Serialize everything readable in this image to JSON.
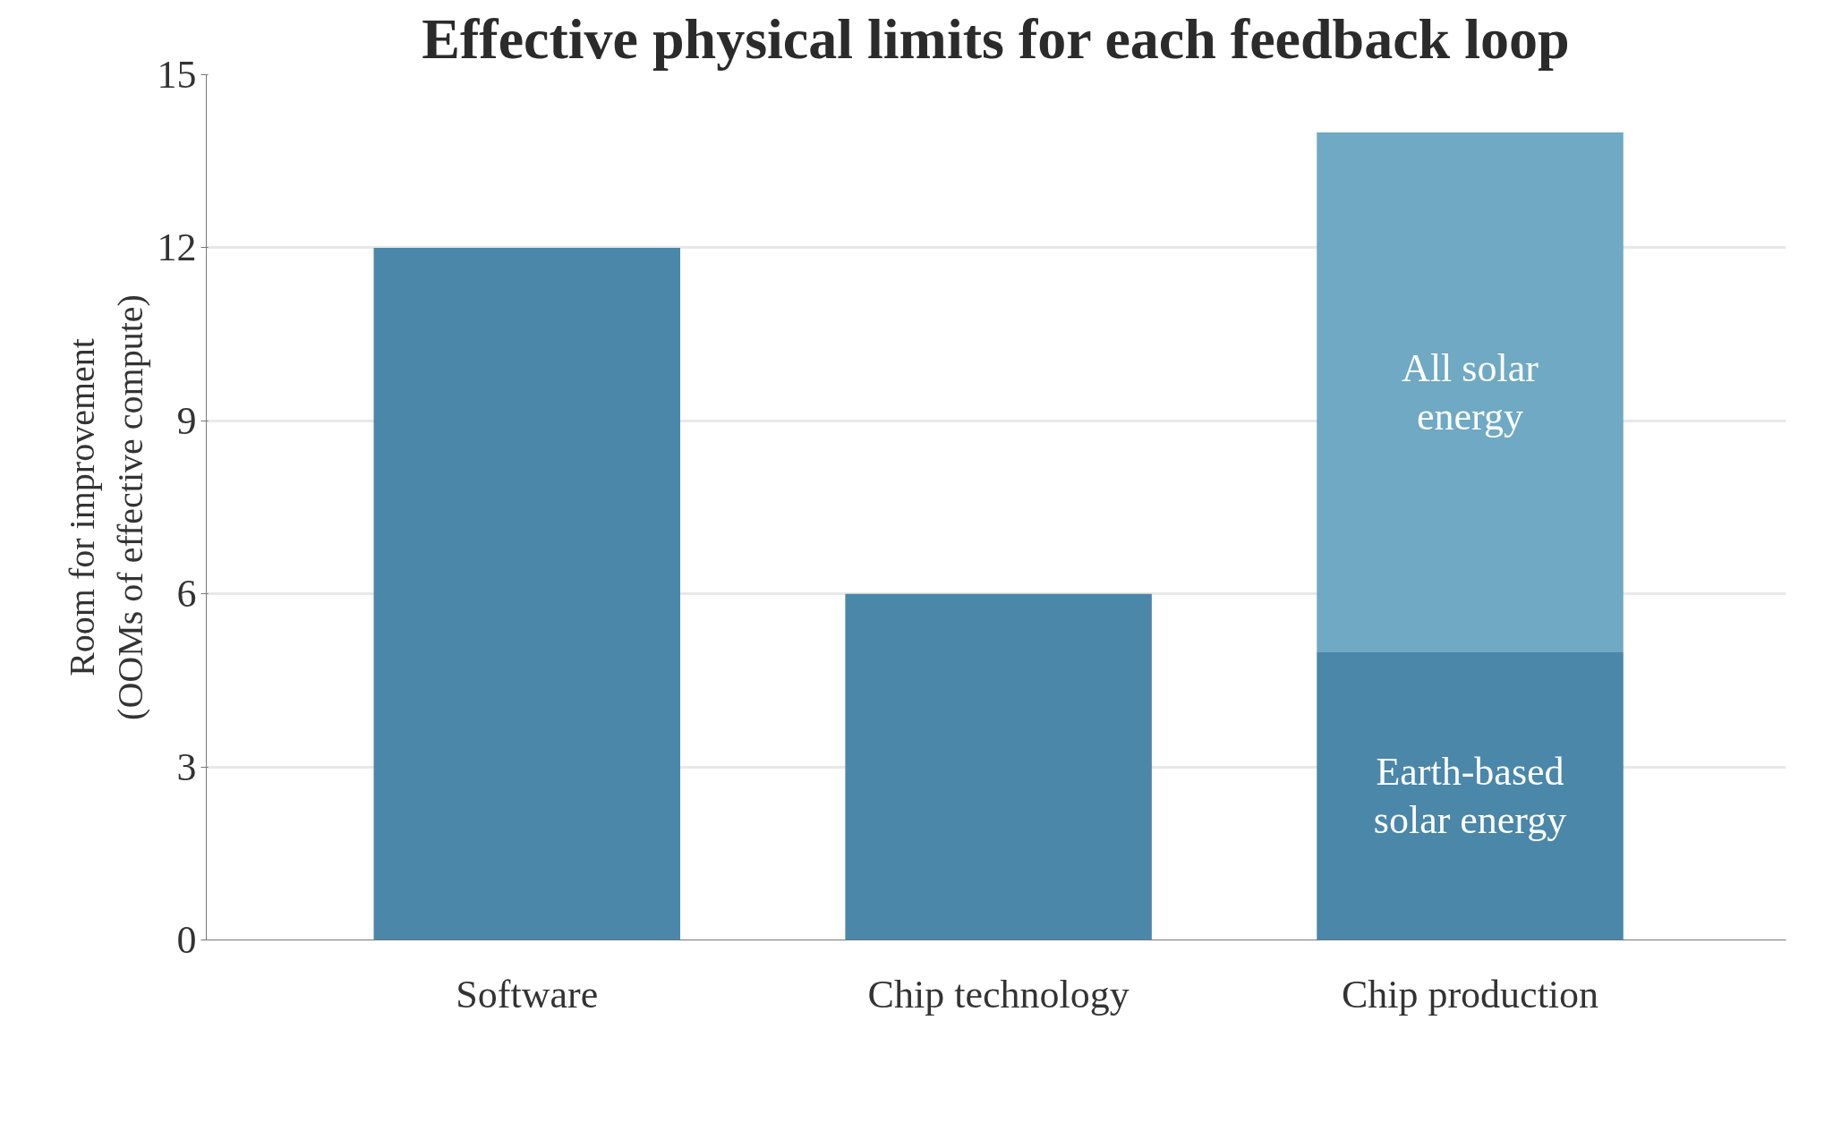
{
  "chart_data": {
    "type": "bar",
    "stacked": true,
    "title": "Effective physical limits for each feedback loop",
    "ylabel": "Room for improvement\n(OOMs of effective compute)",
    "categories": [
      "Software",
      "Chip technology",
      "Chip production"
    ],
    "series": [
      {
        "name": "Earth-based solar energy",
        "color": "#4a87a8",
        "values": [
          12,
          6,
          5
        ]
      },
      {
        "name": "All solar energy",
        "color": "#6fa9c3",
        "values": [
          null,
          null,
          9
        ]
      }
    ],
    "ylim": [
      0,
      15
    ],
    "yticks": [
      0,
      3,
      6,
      9,
      12,
      15
    ],
    "grid": "y"
  }
}
